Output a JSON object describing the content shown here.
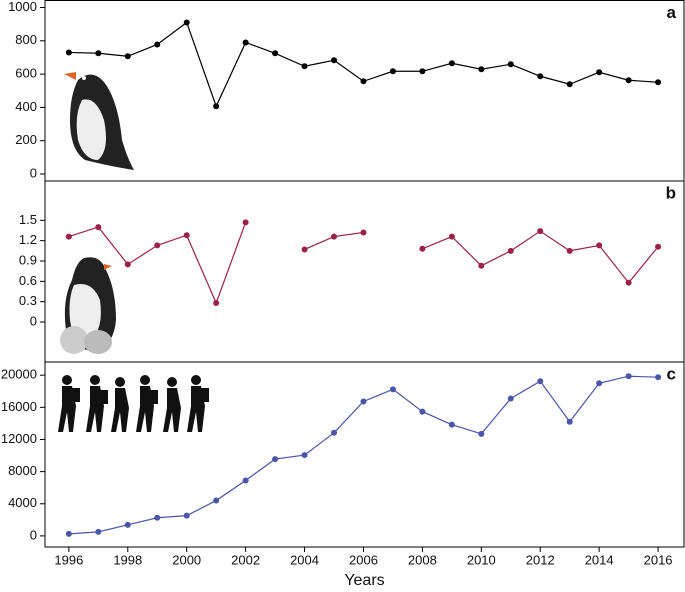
{
  "chart_data": [
    {
      "type": "line",
      "panel_label": "a",
      "color": "#000000",
      "x": [
        1996,
        1997,
        1998,
        1999,
        2000,
        2001,
        2002,
        2003,
        2004,
        2005,
        2006,
        2007,
        2008,
        2009,
        2010,
        2011,
        2012,
        2013,
        2014,
        2015,
        2016
      ],
      "values": [
        730,
        725,
        707,
        778,
        910,
        407,
        790,
        725,
        647,
        683,
        557,
        617,
        617,
        665,
        629,
        659,
        587,
        539,
        611,
        563,
        551
      ],
      "xlim": [
        1995.19,
        2016.88
      ],
      "ylim": [
        -42,
        1042
      ],
      "yticks": [
        0,
        200,
        400,
        600,
        800,
        1000
      ]
    },
    {
      "type": "line",
      "panel_label": "b",
      "color": "#9b2148",
      "x": [
        1996,
        1997,
        1998,
        1999,
        2000,
        2001,
        2002,
        2003,
        2004,
        2005,
        2006,
        2007,
        2008,
        2009,
        2010,
        2011,
        2012,
        2013,
        2014,
        2015,
        2016
      ],
      "values": [
        1.26,
        1.4,
        0.85,
        1.13,
        1.28,
        0.28,
        1.47,
        null,
        1.07,
        1.26,
        1.32,
        null,
        1.08,
        1.26,
        0.83,
        1.05,
        1.34,
        1.05,
        1.13,
        0.58,
        1.11
      ],
      "xlim": [
        1995.19,
        2016.88
      ],
      "ylim": [
        -0.59,
        2.08
      ],
      "yticks": [
        0,
        0.3,
        0.6,
        0.9,
        1.2,
        1.5
      ]
    },
    {
      "type": "line",
      "panel_label": "c",
      "color": "#4a55a8",
      "x_label": "Years",
      "x": [
        1996,
        1997,
        1998,
        1999,
        2000,
        2001,
        2002,
        2003,
        2004,
        2005,
        2006,
        2007,
        2008,
        2009,
        2010,
        2011,
        2012,
        2013,
        2014,
        2015,
        2016
      ],
      "values": [
        250,
        500,
        1380,
        2260,
        2520,
        4400,
        6900,
        9560,
        10060,
        12830,
        16730,
        18240,
        15470,
        13840,
        12700,
        17100,
        19250,
        14210,
        18990,
        19870,
        19750
      ],
      "xlim": [
        1995.19,
        2016.88
      ],
      "ylim": [
        -1380,
        21640
      ],
      "yticks": [
        0,
        4000,
        8000,
        12000,
        16000,
        20000
      ],
      "xticks": [
        1996,
        1998,
        2000,
        2002,
        2004,
        2006,
        2008,
        2010,
        2012,
        2014,
        2016
      ]
    }
  ]
}
